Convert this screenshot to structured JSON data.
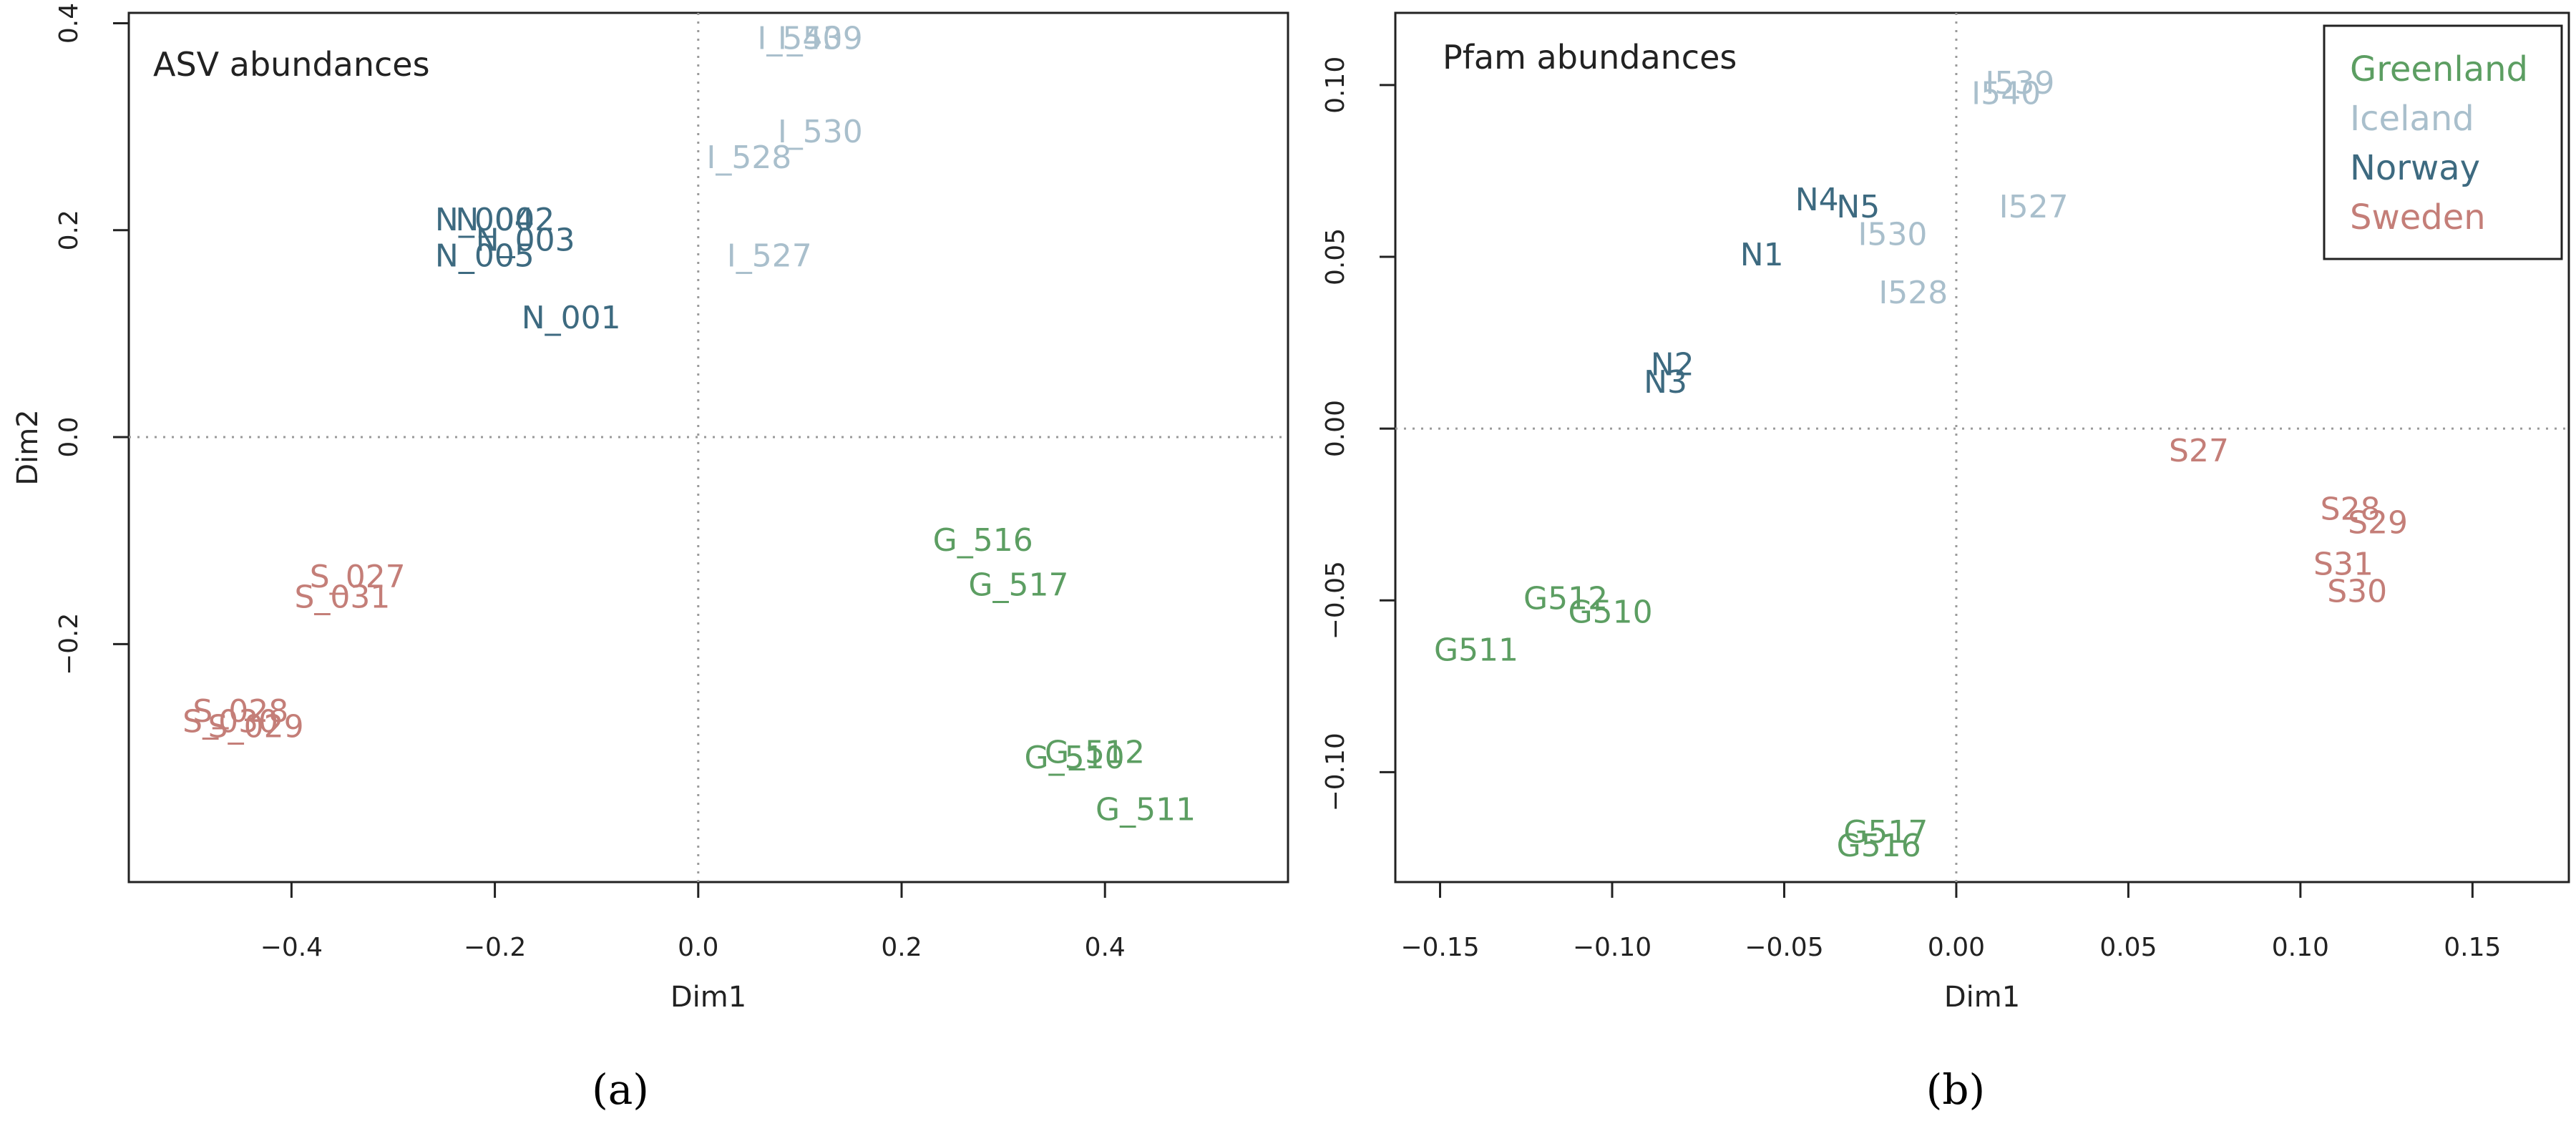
{
  "colors": {
    "Greenland": "#5c9e62",
    "Iceland": "#a9bfcc",
    "Norway": "#3d6a80",
    "Sweden": "#c47e78"
  },
  "legend": [
    "Greenland",
    "Iceland",
    "Norway",
    "Sweden"
  ],
  "chart_data": [
    {
      "type": "scatter",
      "panel": "a",
      "caption": "(a)",
      "title": "ASV abundances",
      "xlabel": "Dim1",
      "ylabel": "Dim2",
      "xlim": [
        -0.56,
        0.58
      ],
      "ylim": [
        -0.43,
        0.41
      ],
      "xticks": [
        -0.4,
        -0.2,
        0.0,
        0.2,
        0.4
      ],
      "xtick_labels": [
        "−0.4",
        "−0.2",
        "0.0",
        "0.2",
        "0.4"
      ],
      "yticks": [
        -0.2,
        0.0,
        0.2,
        0.4
      ],
      "ytick_labels": [
        "−0.2",
        "0.0",
        "0.2",
        "0.4"
      ],
      "points": [
        {
          "label": "I_540",
          "group": "Iceland",
          "x": 0.1,
          "y": 0.385
        },
        {
          "label": "I_539",
          "group": "Iceland",
          "x": 0.12,
          "y": 0.385
        },
        {
          "label": "I_530",
          "group": "Iceland",
          "x": 0.12,
          "y": 0.295
        },
        {
          "label": "I_528",
          "group": "Iceland",
          "x": 0.05,
          "y": 0.27
        },
        {
          "label": "I_527",
          "group": "Iceland",
          "x": 0.07,
          "y": 0.175
        },
        {
          "label": "N_004",
          "group": "Norway",
          "x": -0.21,
          "y": 0.21
        },
        {
          "label": "N_002",
          "group": "Norway",
          "x": -0.19,
          "y": 0.21
        },
        {
          "label": "N_003",
          "group": "Norway",
          "x": -0.17,
          "y": 0.19
        },
        {
          "label": "N_005",
          "group": "Norway",
          "x": -0.21,
          "y": 0.175
        },
        {
          "label": "N_001",
          "group": "Norway",
          "x": -0.125,
          "y": 0.115
        },
        {
          "label": "G_516",
          "group": "Greenland",
          "x": 0.28,
          "y": -0.1
        },
        {
          "label": "G_517",
          "group": "Greenland",
          "x": 0.315,
          "y": -0.143
        },
        {
          "label": "G_512",
          "group": "Greenland",
          "x": 0.39,
          "y": -0.305
        },
        {
          "label": "G_510",
          "group": "Greenland",
          "x": 0.37,
          "y": -0.31
        },
        {
          "label": "G_511",
          "group": "Greenland",
          "x": 0.44,
          "y": -0.36
        },
        {
          "label": "S_027",
          "group": "Sweden",
          "x": -0.335,
          "y": -0.135
        },
        {
          "label": "S_031",
          "group": "Sweden",
          "x": -0.35,
          "y": -0.155
        },
        {
          "label": "S_028",
          "group": "Sweden",
          "x": -0.45,
          "y": -0.265
        },
        {
          "label": "S_030",
          "group": "Sweden",
          "x": -0.46,
          "y": -0.275
        },
        {
          "label": "S_029",
          "group": "Sweden",
          "x": -0.435,
          "y": -0.28
        }
      ]
    },
    {
      "type": "scatter",
      "panel": "b",
      "caption": "(b)",
      "title": "Pfam abundances",
      "xlabel": "Dim1",
      "ylabel": "",
      "legend_position": "top-right",
      "xlim": [
        -0.163,
        0.178
      ],
      "ylim": [
        -0.132,
        0.121
      ],
      "xticks": [
        -0.15,
        -0.1,
        -0.05,
        0.0,
        0.05,
        0.1,
        0.15
      ],
      "xtick_labels": [
        "−0.15",
        "−0.10",
        "−0.05",
        "0.00",
        "0.05",
        "0.10",
        "0.15"
      ],
      "yticks": [
        -0.1,
        -0.05,
        0.0,
        0.05,
        0.1
      ],
      "ytick_labels": [
        "−0.10",
        "−0.05",
        "0.00",
        "0.05",
        "0.10"
      ],
      "points": [
        {
          "label": "I539",
          "group": "Iceland",
          "x": 0.0185,
          "y": 0.1005
        },
        {
          "label": "I540",
          "group": "Iceland",
          "x": 0.0145,
          "y": 0.0975
        },
        {
          "label": "I527",
          "group": "Iceland",
          "x": 0.0225,
          "y": 0.0645
        },
        {
          "label": "I530",
          "group": "Iceland",
          "x": -0.0185,
          "y": 0.0565
        },
        {
          "label": "I528",
          "group": "Iceland",
          "x": -0.0125,
          "y": 0.0395
        },
        {
          "label": "N4",
          "group": "Norway",
          "x": -0.0405,
          "y": 0.0665
        },
        {
          "label": "N5",
          "group": "Norway",
          "x": -0.0285,
          "y": 0.0645
        },
        {
          "label": "N1",
          "group": "Norway",
          "x": -0.0565,
          "y": 0.0505
        },
        {
          "label": "N2",
          "group": "Norway",
          "x": -0.0825,
          "y": 0.0185
        },
        {
          "label": "N3",
          "group": "Norway",
          "x": -0.0845,
          "y": 0.0135
        },
        {
          "label": "S27",
          "group": "Sweden",
          "x": 0.0705,
          "y": -0.0065
        },
        {
          "label": "S28",
          "group": "Sweden",
          "x": 0.1145,
          "y": -0.0235
        },
        {
          "label": "S29",
          "group": "Sweden",
          "x": 0.1225,
          "y": -0.0275
        },
        {
          "label": "S31",
          "group": "Sweden",
          "x": 0.1125,
          "y": -0.0395
        },
        {
          "label": "S30",
          "group": "Sweden",
          "x": 0.1165,
          "y": -0.0475
        },
        {
          "label": "G512",
          "group": "Greenland",
          "x": -0.1135,
          "y": -0.0495
        },
        {
          "label": "G510",
          "group": "Greenland",
          "x": -0.1005,
          "y": -0.0535
        },
        {
          "label": "G511",
          "group": "Greenland",
          "x": -0.1395,
          "y": -0.0645
        },
        {
          "label": "G517",
          "group": "Greenland",
          "x": -0.0205,
          "y": -0.1175
        },
        {
          "label": "G516",
          "group": "Greenland",
          "x": -0.0225,
          "y": -0.1215
        }
      ]
    }
  ]
}
